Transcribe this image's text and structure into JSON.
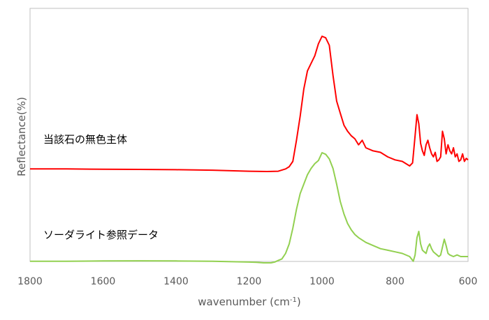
{
  "chart_data": {
    "type": "line",
    "title": "",
    "xlabel": "wavenumber (cm",
    "xlabel_superscript": "-1",
    "xlabel_suffix": ")",
    "ylabel": "Reflectance(%)",
    "xlim": [
      1800,
      600
    ],
    "x_reversed": true,
    "yticks_shown": false,
    "grid": false,
    "legend": "none",
    "x_ticks": [
      "1800",
      "1600",
      "1400",
      "1200",
      "1000",
      "800",
      "600"
    ],
    "series": [
      {
        "name": "当該石の無色主体",
        "color": "#ff0000",
        "x": [
          1800,
          1700,
          1600,
          1500,
          1400,
          1300,
          1200,
          1150,
          1120,
          1100,
          1090,
          1080,
          1070,
          1060,
          1050,
          1040,
          1030,
          1020,
          1010,
          1000,
          990,
          980,
          970,
          960,
          950,
          940,
          930,
          920,
          910,
          900,
          890,
          880,
          860,
          840,
          820,
          800,
          780,
          760,
          752,
          745,
          740,
          735,
          730,
          725,
          720,
          715,
          710,
          705,
          700,
          695,
          690,
          685,
          680,
          675,
          670,
          665,
          660,
          655,
          650,
          645,
          640,
          635,
          630,
          625,
          620,
          615,
          610,
          605,
          600
        ],
        "y": [
          0.6,
          0.6,
          0.598,
          0.597,
          0.595,
          0.592,
          0.585,
          0.583,
          0.585,
          0.6,
          0.615,
          0.65,
          0.79,
          0.95,
          1.13,
          1.25,
          1.3,
          1.35,
          1.43,
          1.48,
          1.47,
          1.42,
          1.22,
          1.05,
          0.97,
          0.89,
          0.85,
          0.82,
          0.8,
          0.76,
          0.79,
          0.74,
          0.72,
          0.71,
          0.68,
          0.66,
          0.65,
          0.62,
          0.64,
          0.82,
          0.96,
          0.9,
          0.77,
          0.72,
          0.69,
          0.76,
          0.79,
          0.74,
          0.7,
          0.68,
          0.71,
          0.65,
          0.66,
          0.68,
          0.85,
          0.8,
          0.7,
          0.76,
          0.72,
          0.7,
          0.74,
          0.68,
          0.7,
          0.65,
          0.66,
          0.7,
          0.65,
          0.67,
          0.66
        ]
      },
      {
        "name": "ソーダライト参照データ",
        "color": "#92d050",
        "x": [
          1800,
          1700,
          1600,
          1500,
          1400,
          1300,
          1200,
          1180,
          1160,
          1150,
          1140,
          1130,
          1120,
          1110,
          1100,
          1090,
          1080,
          1070,
          1060,
          1050,
          1040,
          1030,
          1020,
          1010,
          1000,
          990,
          980,
          970,
          960,
          950,
          940,
          930,
          920,
          910,
          900,
          880,
          860,
          840,
          820,
          800,
          780,
          760,
          750,
          745,
          740,
          735,
          730,
          725,
          720,
          715,
          710,
          705,
          700,
          695,
          690,
          685,
          680,
          675,
          670,
          665,
          660,
          655,
          650,
          640,
          630,
          620,
          610,
          600
        ],
        "y": [
          0.01,
          0.01,
          0.012,
          0.013,
          0.012,
          0.01,
          0.005,
          0.003,
          0.0,
          0.0,
          0.0,
          0.005,
          0.015,
          0.025,
          0.06,
          0.12,
          0.22,
          0.34,
          0.44,
          0.5,
          0.56,
          0.6,
          0.63,
          0.65,
          0.7,
          0.69,
          0.66,
          0.6,
          0.5,
          0.39,
          0.31,
          0.25,
          0.21,
          0.18,
          0.16,
          0.13,
          0.11,
          0.09,
          0.08,
          0.07,
          0.06,
          0.04,
          0.01,
          0.05,
          0.16,
          0.2,
          0.12,
          0.08,
          0.07,
          0.06,
          0.1,
          0.12,
          0.09,
          0.07,
          0.06,
          0.05,
          0.04,
          0.05,
          0.1,
          0.15,
          0.11,
          0.06,
          0.05,
          0.04,
          0.05,
          0.04,
          0.04,
          0.04
        ]
      }
    ]
  },
  "labels": {
    "series1": "当該石の無色主体",
    "series2": "ソーダライト参照データ"
  }
}
